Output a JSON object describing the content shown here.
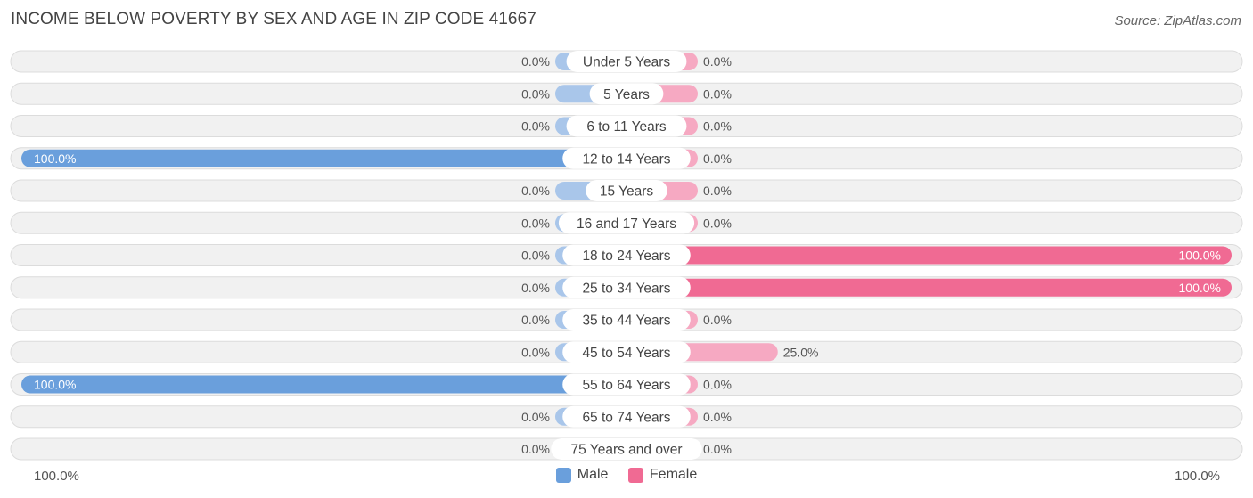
{
  "title": "INCOME BELOW POVERTY BY SEX AND AGE IN ZIP CODE 41667",
  "source": "Source: ZipAtlas.com",
  "colors": {
    "male_strong": "#6a9fdc",
    "male_light": "#a9c6ea",
    "female_strong": "#f06a93",
    "female_light": "#f6a9c2",
    "row_bg": "#f1f1f1",
    "row_border": "#dcdcdc"
  },
  "legend": [
    {
      "label": "Male",
      "color": "#6a9fdc"
    },
    {
      "label": "Female",
      "color": "#f06a93"
    }
  ],
  "axis": {
    "left_label": "100.0%",
    "right_label": "100.0%"
  },
  "chart_data": {
    "type": "bar",
    "orientation": "horizontal-diverging",
    "title": "INCOME BELOW POVERTY BY SEX AND AGE IN ZIP CODE 41667",
    "categories": [
      "Under 5 Years",
      "5 Years",
      "6 to 11 Years",
      "12 to 14 Years",
      "15 Years",
      "16 and 17 Years",
      "18 to 24 Years",
      "25 to 34 Years",
      "35 to 44 Years",
      "45 to 54 Years",
      "55 to 64 Years",
      "65 to 74 Years",
      "75 Years and over"
    ],
    "series": [
      {
        "name": "Male",
        "values": [
          0,
          0,
          0,
          100,
          0,
          0,
          0,
          0,
          0,
          0,
          100,
          0,
          0
        ],
        "labels": [
          "0.0%",
          "0.0%",
          "0.0%",
          "100.0%",
          "0.0%",
          "0.0%",
          "0.0%",
          "0.0%",
          "0.0%",
          "0.0%",
          "100.0%",
          "0.0%",
          "0.0%"
        ]
      },
      {
        "name": "Female",
        "values": [
          0,
          0,
          0,
          0,
          0,
          0,
          100,
          100,
          0,
          25,
          0,
          0,
          0
        ],
        "labels": [
          "0.0%",
          "0.0%",
          "0.0%",
          "0.0%",
          "0.0%",
          "0.0%",
          "100.0%",
          "100.0%",
          "0.0%",
          "25.0%",
          "0.0%",
          "0.0%",
          "0.0%"
        ]
      }
    ],
    "xlim": [
      0,
      100
    ],
    "legend_position": "bottom-center"
  }
}
